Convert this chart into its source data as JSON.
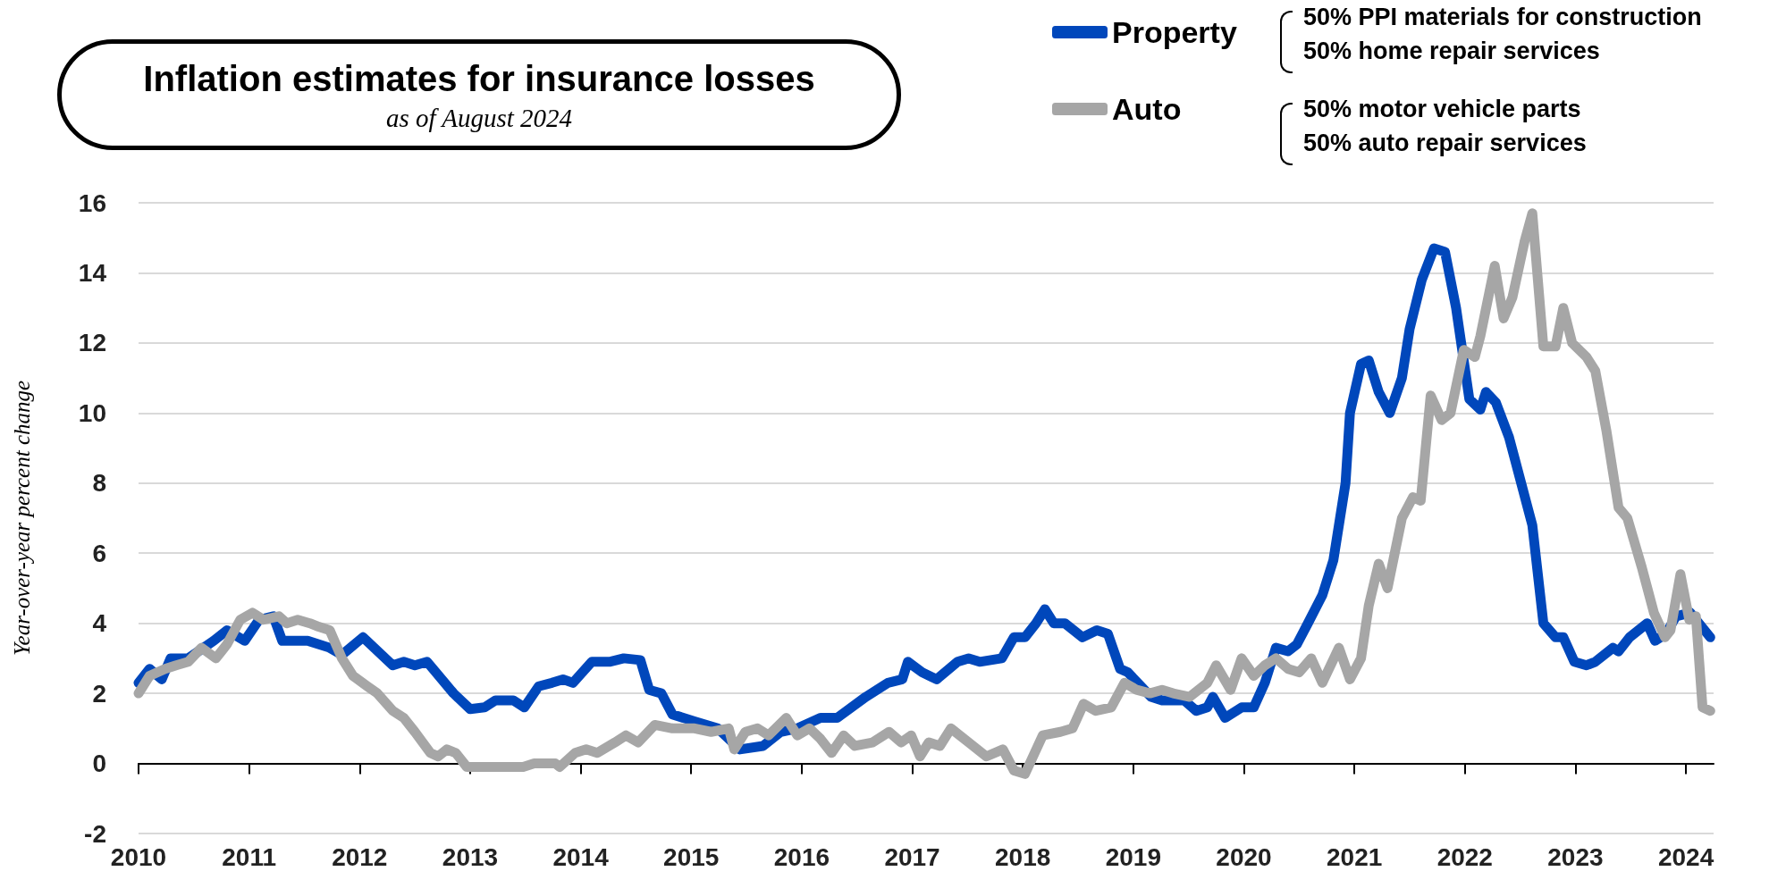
{
  "chart_data": {
    "type": "line",
    "title": "Inflation estimates for insurance losses",
    "subtitle": "as of August 2024",
    "ylabel": "Year-over-year percent change",
    "annotations": [
      "50% PPI materials for construction",
      "50% home repair services",
      "50% motor vehicle parts",
      "50% auto repair services"
    ],
    "xlim": [
      2010,
      2024.25
    ],
    "xticks": [
      2010,
      2011,
      2012,
      2013,
      2014,
      2015,
      2016,
      2017,
      2018,
      2019,
      2020,
      2021,
      2022,
      2023,
      2024
    ],
    "ylim": [
      -2,
      16
    ],
    "yticks": [
      -2,
      0,
      2,
      4,
      6,
      8,
      10,
      12,
      14,
      16
    ],
    "grid": "y",
    "legend": "top right",
    "marker": "none",
    "line_style": "solid",
    "series": [
      {
        "name": "Property",
        "color": "#0047bb",
        "x": [
          2010.0,
          2010.1,
          2010.21,
          2010.29,
          2010.45,
          2010.68,
          2010.8,
          2010.96,
          2011.09,
          2011.22,
          2011.3,
          2011.53,
          2011.73,
          2011.84,
          2012.03,
          2012.3,
          2012.4,
          2012.5,
          2012.61,
          2012.85,
          2013.0,
          2013.13,
          2013.23,
          2013.39,
          2013.49,
          2013.62,
          2013.74,
          2013.84,
          2013.93,
          2014.1,
          2014.26,
          2014.39,
          2014.54,
          2014.62,
          2014.73,
          2014.83,
          2015.03,
          2015.24,
          2015.44,
          2015.65,
          2015.81,
          2015.96,
          2016.17,
          2016.32,
          2016.58,
          2016.78,
          2016.91,
          2016.96,
          2017.09,
          2017.22,
          2017.41,
          2017.51,
          2017.61,
          2017.81,
          2017.92,
          2018.02,
          2018.12,
          2018.2,
          2018.28,
          2018.38,
          2018.54,
          2018.67,
          2018.77,
          2018.88,
          2018.95,
          2019.16,
          2019.26,
          2019.46,
          2019.57,
          2019.67,
          2019.72,
          2019.83,
          2019.98,
          2020.09,
          2020.19,
          2020.29,
          2020.4,
          2020.48,
          2020.58,
          2020.71,
          2020.81,
          2020.92,
          2020.96,
          2021.06,
          2021.13,
          2021.22,
          2021.32,
          2021.43,
          2021.5,
          2021.61,
          2021.72,
          2021.82,
          2021.92,
          2022.04,
          2022.14,
          2022.19,
          2022.28,
          2022.4,
          2022.61,
          2022.71,
          2022.82,
          2022.89,
          2022.99,
          2023.1,
          2023.18,
          2023.34,
          2023.39,
          2023.49,
          2023.65,
          2023.72,
          2023.82,
          2023.91,
          2024.04,
          2024.22
        ],
        "values": [
          2.3,
          2.7,
          2.4,
          3.0,
          3.0,
          3.5,
          3.8,
          3.5,
          4.1,
          4.2,
          3.5,
          3.5,
          3.3,
          3.1,
          3.6,
          2.8,
          2.9,
          2.8,
          2.9,
          2.0,
          1.55,
          1.6,
          1.8,
          1.8,
          1.6,
          2.2,
          2.3,
          2.4,
          2.3,
          2.9,
          2.9,
          3.0,
          2.95,
          2.1,
          2.0,
          1.4,
          1.2,
          1.0,
          0.4,
          0.5,
          0.9,
          1.0,
          1.3,
          1.3,
          1.9,
          2.3,
          2.4,
          2.9,
          2.6,
          2.4,
          2.9,
          3.0,
          2.9,
          3.0,
          3.6,
          3.6,
          4.0,
          4.4,
          4.0,
          4.0,
          3.6,
          3.8,
          3.7,
          2.7,
          2.6,
          1.9,
          1.8,
          1.8,
          1.5,
          1.6,
          1.9,
          1.3,
          1.6,
          1.6,
          2.3,
          3.3,
          3.2,
          3.4,
          4.0,
          4.8,
          5.8,
          8.0,
          10.0,
          11.4,
          11.5,
          10.6,
          10.0,
          11.0,
          12.4,
          13.8,
          14.7,
          14.6,
          13.0,
          10.4,
          10.1,
          10.6,
          10.3,
          9.3,
          6.8,
          4.0,
          3.6,
          3.6,
          2.9,
          2.8,
          2.9,
          3.3,
          3.2,
          3.6,
          4.0,
          3.5,
          3.7,
          4.2,
          4.3,
          3.6
        ]
      },
      {
        "name": "Auto",
        "color": "#a6a6a6",
        "x": [
          2010.0,
          2010.1,
          2010.24,
          2010.34,
          2010.45,
          2010.57,
          2010.7,
          2010.8,
          2010.92,
          2011.03,
          2011.13,
          2011.27,
          2011.34,
          2011.44,
          2011.55,
          2011.63,
          2011.73,
          2011.84,
          2011.94,
          2012.07,
          2012.16,
          2012.3,
          2012.4,
          2012.5,
          2012.64,
          2012.71,
          2012.79,
          2012.87,
          2012.97,
          2013.07,
          2013.28,
          2013.48,
          2013.58,
          2013.77,
          2013.81,
          2013.95,
          2014.05,
          2014.15,
          2014.31,
          2014.41,
          2014.52,
          2014.67,
          2014.83,
          2015.03,
          2015.18,
          2015.34,
          2015.39,
          2015.49,
          2015.6,
          2015.7,
          2015.86,
          2015.96,
          2016.07,
          2016.17,
          2016.27,
          2016.38,
          2016.48,
          2016.64,
          2016.79,
          2016.9,
          2016.99,
          2017.07,
          2017.15,
          2017.25,
          2017.35,
          2017.51,
          2017.67,
          2017.82,
          2017.92,
          2018.02,
          2018.18,
          2018.34,
          2018.45,
          2018.55,
          2018.66,
          2018.8,
          2018.92,
          2019.03,
          2019.15,
          2019.26,
          2019.36,
          2019.51,
          2019.67,
          2019.75,
          2019.88,
          2019.98,
          2020.09,
          2020.19,
          2020.29,
          2020.4,
          2020.5,
          2020.61,
          2020.71,
          2020.86,
          2020.96,
          2021.06,
          2021.13,
          2021.22,
          2021.3,
          2021.43,
          2021.53,
          2021.6,
          2021.69,
          2021.79,
          2021.87,
          2021.99,
          2022.09,
          2022.14,
          2022.27,
          2022.35,
          2022.43,
          2022.54,
          2022.61,
          2022.71,
          2022.82,
          2022.89,
          2022.97,
          2023.1,
          2023.18,
          2023.28,
          2023.39,
          2023.47,
          2023.6,
          2023.71,
          2023.81,
          2023.86,
          2023.95,
          2024.03,
          2024.09,
          2024.15,
          2024.22
        ],
        "values": [
          2.0,
          2.5,
          2.7,
          2.8,
          2.9,
          3.3,
          3.0,
          3.4,
          4.1,
          4.3,
          4.1,
          4.2,
          4.0,
          4.1,
          4.0,
          3.9,
          3.8,
          3.0,
          2.5,
          2.2,
          2.0,
          1.5,
          1.3,
          0.9,
          0.3,
          0.2,
          0.4,
          0.3,
          -0.1,
          -0.1,
          -0.1,
          -0.1,
          0.0,
          0.0,
          -0.1,
          0.3,
          0.4,
          0.3,
          0.6,
          0.8,
          0.6,
          1.1,
          1.0,
          1.0,
          0.9,
          1.0,
          0.4,
          0.9,
          1.0,
          0.8,
          1.3,
          0.8,
          1.0,
          0.7,
          0.3,
          0.8,
          0.5,
          0.6,
          0.9,
          0.6,
          0.8,
          0.2,
          0.6,
          0.5,
          1.0,
          0.6,
          0.2,
          0.4,
          -0.2,
          -0.3,
          0.8,
          0.9,
          1.0,
          1.7,
          1.5,
          1.6,
          2.3,
          2.1,
          2.0,
          2.1,
          2.0,
          1.9,
          2.3,
          2.8,
          2.1,
          3.0,
          2.5,
          2.8,
          3.0,
          2.7,
          2.6,
          3.0,
          2.3,
          3.3,
          2.4,
          3.0,
          4.5,
          5.7,
          5.0,
          7.0,
          7.6,
          7.5,
          10.5,
          9.8,
          10.0,
          11.8,
          11.6,
          12.2,
          14.2,
          12.7,
          13.3,
          14.9,
          15.7,
          11.9,
          11.9,
          13.0,
          12.0,
          11.6,
          11.2,
          9.5,
          7.3,
          7.0,
          5.6,
          4.3,
          3.6,
          3.8,
          5.4,
          4.1,
          4.2,
          1.6,
          1.5
        ]
      }
    ]
  }
}
